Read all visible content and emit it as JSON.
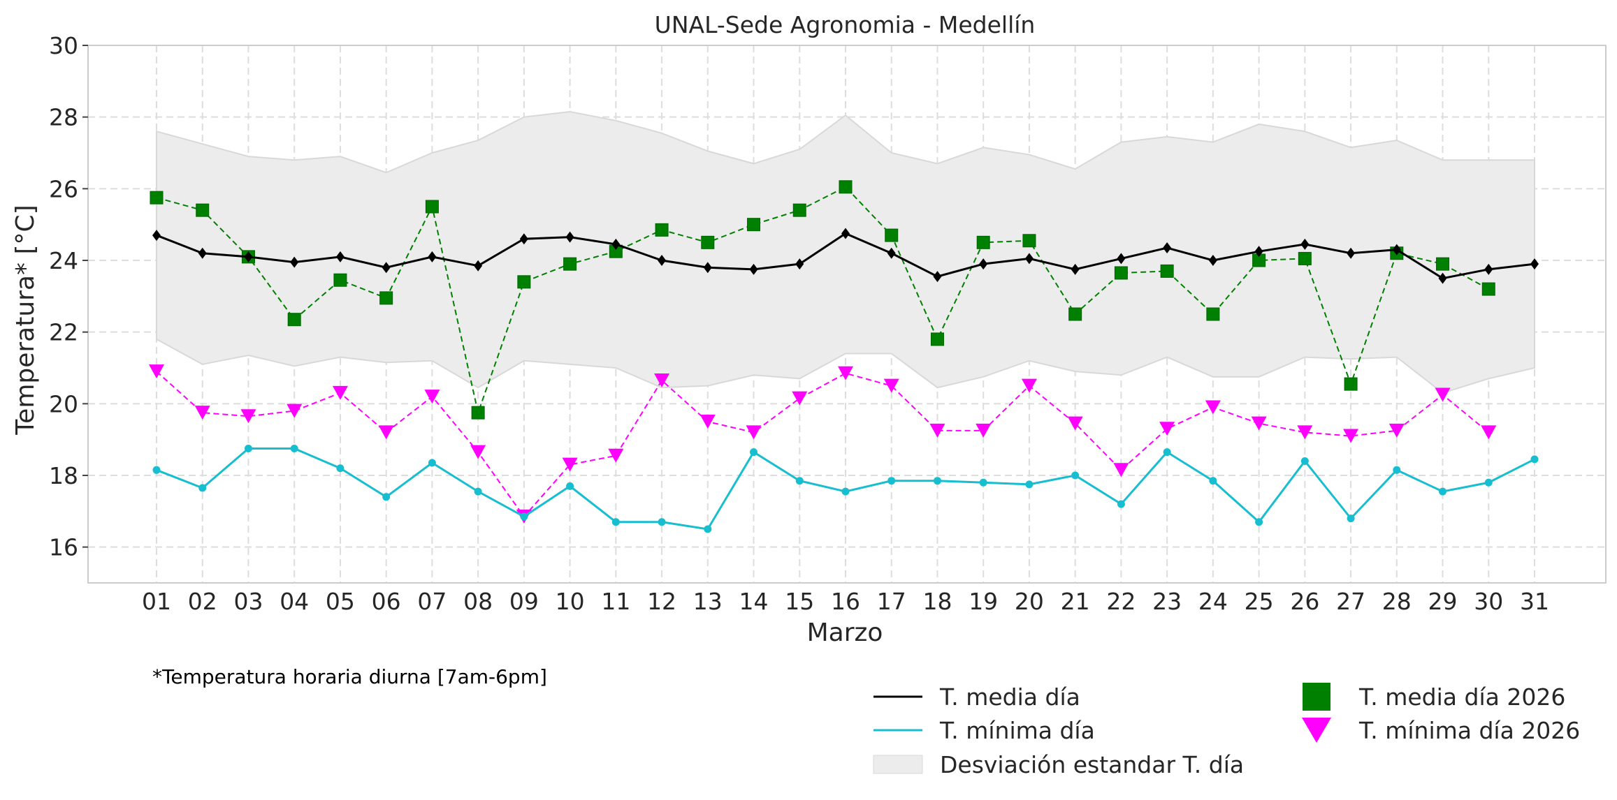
{
  "chart_data": {
    "type": "line",
    "title": "UNAL-Sede Agronomia - Medellín",
    "xlabel": "Marzo",
    "ylabel": "Temperatura* [°C]",
    "ylim": [
      15,
      30
    ],
    "yticks": [
      16,
      18,
      20,
      22,
      24,
      26,
      28,
      30
    ],
    "grid": true,
    "categories": [
      "01",
      "02",
      "03",
      "04",
      "05",
      "06",
      "07",
      "08",
      "09",
      "10",
      "11",
      "12",
      "13",
      "14",
      "15",
      "16",
      "17",
      "18",
      "19",
      "20",
      "21",
      "22",
      "23",
      "24",
      "25",
      "26",
      "27",
      "28",
      "29",
      "30",
      "31"
    ],
    "footnote": "*Temperatura horaria diurna [7am-6pm]",
    "legend_position": "bottom-right",
    "series": [
      {
        "name": "T. media día",
        "style": "solid-line-diamond",
        "color": "#000000",
        "values": [
          24.7,
          24.2,
          24.1,
          23.95,
          24.1,
          23.8,
          24.1,
          23.85,
          24.6,
          24.65,
          24.45,
          24.0,
          23.8,
          23.75,
          23.9,
          24.75,
          24.2,
          23.55,
          23.9,
          24.05,
          23.75,
          24.05,
          24.35,
          24.0,
          24.25,
          24.45,
          24.2,
          24.3,
          23.5,
          23.75,
          23.9
        ]
      },
      {
        "name": "T. mínima día",
        "style": "solid-line-circle",
        "color": "#17becf",
        "values": [
          18.15,
          17.65,
          18.75,
          18.75,
          18.2,
          17.4,
          18.35,
          17.55,
          16.85,
          17.7,
          16.7,
          16.7,
          16.5,
          18.65,
          17.85,
          17.55,
          17.85,
          17.85,
          17.8,
          17.75,
          18.0,
          17.2,
          18.65,
          17.85,
          16.7,
          18.4,
          16.8,
          18.15,
          17.55,
          17.8,
          18.45
        ]
      },
      {
        "name": "T. media día 2026",
        "style": "dashed-line-square",
        "color": "#008000",
        "values": [
          25.75,
          25.4,
          24.1,
          22.35,
          23.45,
          22.95,
          25.5,
          19.75,
          23.4,
          23.9,
          24.25,
          24.85,
          24.5,
          25.0,
          25.4,
          26.05,
          24.7,
          21.8,
          24.5,
          24.55,
          22.5,
          23.65,
          23.7,
          22.5,
          24.0,
          24.05,
          20.55,
          24.2,
          23.9,
          23.2,
          null
        ]
      },
      {
        "name": "T. mínima día 2026",
        "style": "dashed-line-triangle-down",
        "color": "#ff00ff",
        "values": [
          20.9,
          19.75,
          19.65,
          19.8,
          20.3,
          19.2,
          20.2,
          18.65,
          16.85,
          18.3,
          18.55,
          20.65,
          19.5,
          19.2,
          20.15,
          20.85,
          20.5,
          19.25,
          19.25,
          20.5,
          19.45,
          18.15,
          19.3,
          19.9,
          19.45,
          19.2,
          19.1,
          19.25,
          20.25,
          19.2,
          null
        ]
      }
    ],
    "band": {
      "name": "Desviación estandar T. día",
      "color": "#ececec",
      "upper": [
        27.6,
        27.25,
        26.9,
        26.8,
        26.9,
        26.45,
        27.0,
        27.35,
        28.0,
        28.15,
        27.9,
        27.55,
        27.05,
        26.7,
        27.1,
        28.05,
        27.0,
        26.7,
        27.15,
        26.95,
        26.55,
        27.3,
        27.45,
        27.3,
        27.8,
        27.6,
        27.15,
        27.35,
        26.8,
        26.8,
        26.8
      ],
      "lower": [
        21.8,
        21.1,
        21.35,
        21.05,
        21.3,
        21.15,
        21.2,
        20.45,
        21.2,
        21.1,
        21.0,
        20.45,
        20.5,
        20.8,
        20.7,
        21.4,
        21.4,
        20.45,
        20.75,
        21.2,
        20.9,
        20.8,
        21.3,
        20.75,
        20.75,
        21.3,
        21.25,
        21.3,
        20.3,
        20.7,
        21.0
      ]
    }
  }
}
